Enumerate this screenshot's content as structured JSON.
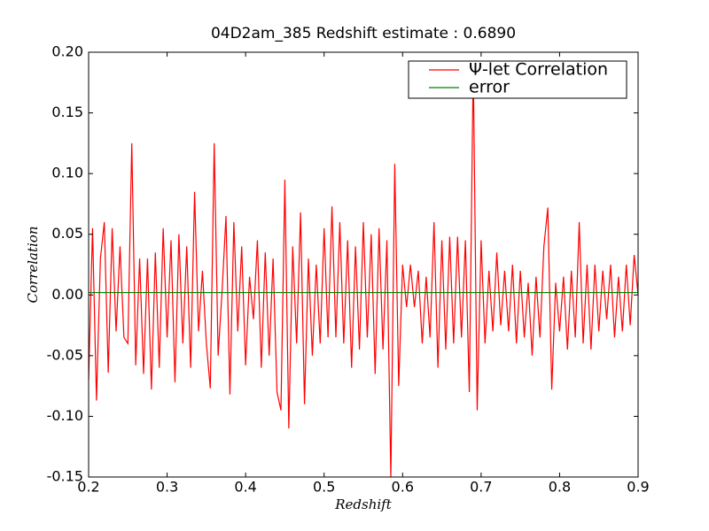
{
  "chart_data": {
    "type": "line",
    "title": "04D2am_385 Redshift estimate : 0.6890",
    "xlabel": "Redshift",
    "ylabel": "Correlation",
    "x": [
      0.2,
      0.205,
      0.21,
      0.215,
      0.22,
      0.225,
      0.23,
      0.235,
      0.24,
      0.245,
      0.25,
      0.255,
      0.26,
      0.265,
      0.27,
      0.275,
      0.28,
      0.285,
      0.29,
      0.295,
      0.3,
      0.305,
      0.31,
      0.315,
      0.32,
      0.325,
      0.33,
      0.335,
      0.34,
      0.345,
      0.35,
      0.355,
      0.36,
      0.365,
      0.37,
      0.375,
      0.38,
      0.385,
      0.39,
      0.395,
      0.4,
      0.405,
      0.41,
      0.415,
      0.42,
      0.425,
      0.43,
      0.435,
      0.44,
      0.445,
      0.45,
      0.455,
      0.46,
      0.465,
      0.47,
      0.475,
      0.48,
      0.485,
      0.49,
      0.495,
      0.5,
      0.505,
      0.51,
      0.515,
      0.52,
      0.525,
      0.53,
      0.535,
      0.54,
      0.545,
      0.55,
      0.555,
      0.56,
      0.565,
      0.57,
      0.575,
      0.58,
      0.585,
      0.59,
      0.595,
      0.6,
      0.605,
      0.61,
      0.615,
      0.62,
      0.625,
      0.63,
      0.635,
      0.64,
      0.645,
      0.65,
      0.655,
      0.66,
      0.665,
      0.67,
      0.675,
      0.68,
      0.685,
      0.69,
      0.695,
      0.7,
      0.705,
      0.71,
      0.715,
      0.72,
      0.725,
      0.73,
      0.735,
      0.74,
      0.745,
      0.75,
      0.755,
      0.76,
      0.765,
      0.77,
      0.775,
      0.78,
      0.785,
      0.79,
      0.795,
      0.8,
      0.805,
      0.81,
      0.815,
      0.82,
      0.825,
      0.83,
      0.835,
      0.84,
      0.845,
      0.85,
      0.855,
      0.86,
      0.865,
      0.87,
      0.875,
      0.88,
      0.885,
      0.89,
      0.895,
      0.9
    ],
    "series": [
      {
        "name": "Ψ-let Correlation",
        "color": "#ff0000",
        "values": [
          -0.07,
          0.055,
          -0.087,
          0.03,
          0.06,
          -0.064,
          0.055,
          -0.03,
          0.04,
          -0.035,
          -0.04,
          0.125,
          -0.058,
          0.03,
          -0.065,
          0.03,
          -0.078,
          0.035,
          -0.06,
          0.055,
          -0.035,
          0.045,
          -0.072,
          0.05,
          -0.04,
          0.04,
          -0.06,
          0.085,
          -0.03,
          0.02,
          -0.04,
          -0.077,
          0.125,
          -0.05,
          0.003,
          0.065,
          -0.082,
          0.06,
          -0.03,
          0.04,
          -0.058,
          0.015,
          -0.02,
          0.045,
          -0.06,
          0.035,
          -0.05,
          0.03,
          -0.08,
          -0.095,
          0.095,
          -0.11,
          0.04,
          -0.04,
          0.068,
          -0.09,
          0.03,
          -0.05,
          0.025,
          -0.04,
          0.055,
          -0.035,
          0.073,
          -0.035,
          0.06,
          -0.04,
          0.045,
          -0.06,
          0.04,
          -0.045,
          0.06,
          -0.035,
          0.05,
          -0.065,
          0.055,
          -0.045,
          0.045,
          -0.15,
          0.108,
          -0.075,
          0.025,
          -0.01,
          0.025,
          -0.01,
          0.02,
          -0.04,
          0.015,
          -0.035,
          0.06,
          -0.06,
          0.045,
          -0.045,
          0.048,
          -0.04,
          0.048,
          -0.035,
          0.045,
          -0.08,
          0.19,
          -0.095,
          0.045,
          -0.04,
          0.02,
          -0.03,
          0.035,
          -0.025,
          0.02,
          -0.03,
          0.025,
          -0.04,
          0.02,
          -0.035,
          0.01,
          -0.05,
          0.015,
          -0.035,
          0.04,
          0.072,
          -0.078,
          0.01,
          -0.03,
          0.015,
          -0.045,
          0.02,
          -0.035,
          0.06,
          -0.04,
          0.025,
          -0.045,
          0.025,
          -0.03,
          0.02,
          -0.02,
          0.025,
          -0.035,
          0.015,
          -0.03,
          0.025,
          -0.025,
          0.033,
          0.0
        ]
      },
      {
        "name": "error",
        "color": "#008000",
        "x": [
          0.2,
          0.9
        ],
        "values": [
          0.002,
          0.002
        ]
      }
    ],
    "xlim": [
      0.2,
      0.9
    ],
    "ylim": [
      -0.15,
      0.2
    ],
    "xticks": [
      0.2,
      0.3,
      0.4,
      0.5,
      0.6,
      0.7,
      0.8,
      0.9
    ],
    "yticks": [
      {
        "value": -0.15,
        "label": "-0.15"
      },
      {
        "value": -0.1,
        "label": "-0.10"
      },
      {
        "value": -0.05,
        "label": "-0.05"
      },
      {
        "value": 0,
        "label": "0.00"
      },
      {
        "value": 0.05,
        "label": "0.05"
      },
      {
        "value": 0.1,
        "label": "0.10"
      },
      {
        "value": 0.15,
        "label": "0.15"
      },
      {
        "value": 0.2,
        "label": "0.20"
      }
    ],
    "grid": false,
    "legend": "upper right"
  }
}
